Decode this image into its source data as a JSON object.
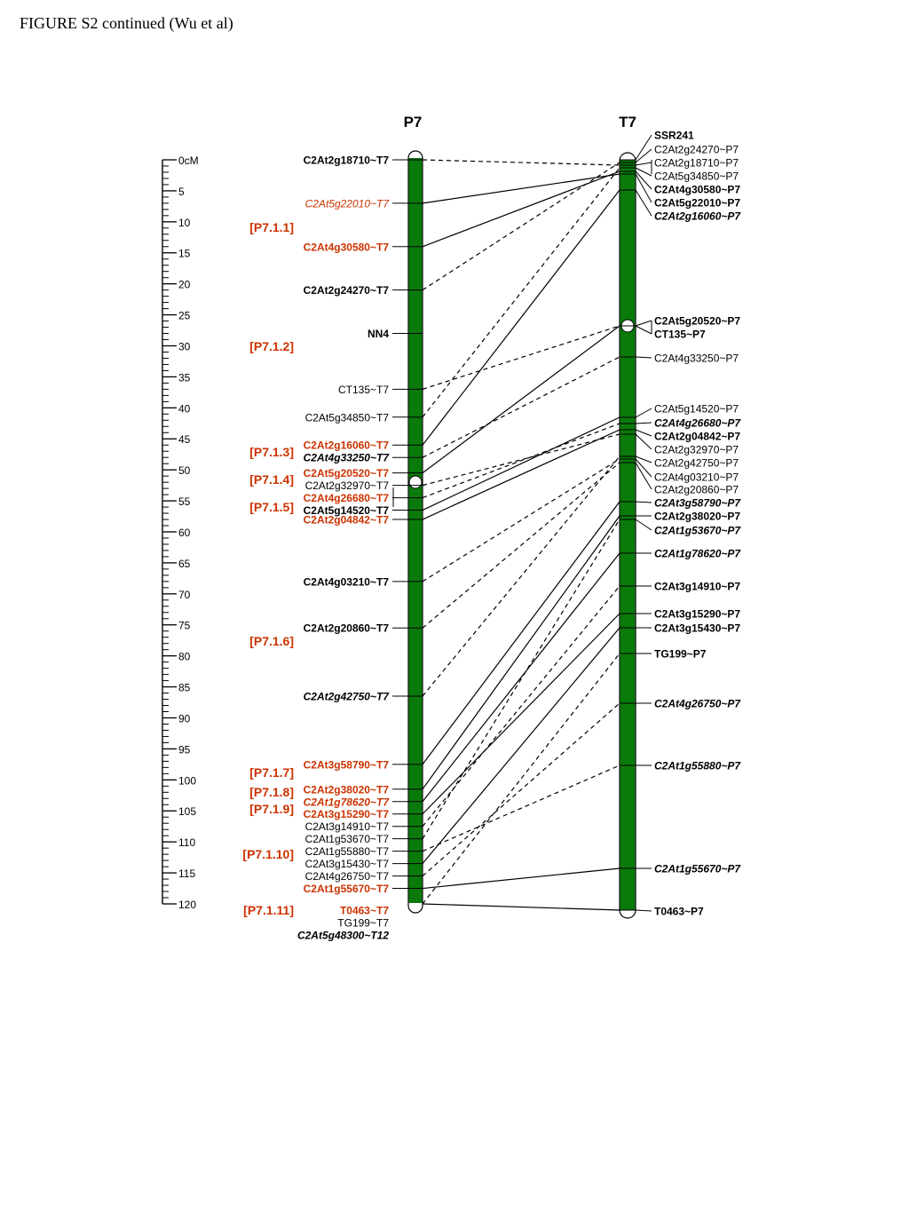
{
  "page_title": "FIGURE S2 continued (Wu et al)",
  "colors": {
    "chromosome": "#0a7a0a",
    "highlight": "#cc3300",
    "text": "#000000",
    "line": "#000000"
  },
  "scale": {
    "unit_label": "0cM",
    "labels": [
      "5",
      "10",
      "15",
      "20",
      "25",
      "30",
      "35",
      "40",
      "45",
      "50",
      "55",
      "60",
      "65",
      "70",
      "75",
      "80",
      "85",
      "90",
      "95",
      "100",
      "105",
      "110",
      "115",
      "120"
    ]
  },
  "maps": {
    "p7": {
      "title": "P7",
      "markers": [
        {
          "name": "C2At2g18710~T7",
          "cm": 0,
          "bold": true,
          "italic": false,
          "highlight": false
        },
        {
          "name": "C2At5g22010~T7",
          "cm": 7,
          "bold": false,
          "italic": true,
          "highlight": true
        },
        {
          "name": "C2At4g30580~T7",
          "cm": 14,
          "bold": true,
          "italic": false,
          "highlight": true
        },
        {
          "name": "C2At2g24270~T7",
          "cm": 21,
          "bold": true,
          "italic": false,
          "highlight": false
        },
        {
          "name": "NN4",
          "cm": 28,
          "bold": true,
          "italic": false,
          "highlight": false
        },
        {
          "name": "CT135~T7",
          "cm": 37,
          "bold": false,
          "italic": false,
          "highlight": false
        },
        {
          "name": "C2At5g34850~T7",
          "cm": 41.5,
          "bold": false,
          "italic": false,
          "highlight": false
        },
        {
          "name": "C2At2g16060~T7",
          "cm": 46,
          "bold": true,
          "italic": false,
          "highlight": true
        },
        {
          "name": "C2At4g33250~T7",
          "cm": 48,
          "bold": true,
          "italic": true,
          "highlight": false
        },
        {
          "name": "C2At5g20520~T7",
          "cm": 50.5,
          "bold": true,
          "italic": false,
          "highlight": true
        },
        {
          "name": "C2At2g32970~T7",
          "cm": 52.5,
          "bold": false,
          "italic": false,
          "highlight": false
        },
        {
          "name": "C2At4g26680~T7",
          "cm": 54.5,
          "bold": true,
          "italic": false,
          "highlight": true
        },
        {
          "name": "C2At5g14520~T7",
          "cm": 56.5,
          "bold": true,
          "italic": false,
          "highlight": false
        },
        {
          "name": "C2At2g04842~T7",
          "cm": 58,
          "bold": true,
          "italic": false,
          "highlight": true
        },
        {
          "name": "C2At4g03210~T7",
          "cm": 68,
          "bold": true,
          "italic": false,
          "highlight": false
        },
        {
          "name": "C2At2g20860~T7",
          "cm": 75.5,
          "bold": true,
          "italic": false,
          "highlight": false
        },
        {
          "name": "C2At2g42750~T7",
          "cm": 86.5,
          "bold": true,
          "italic": true,
          "highlight": false
        },
        {
          "name": "C2At3g58790~T7",
          "cm": 97.5,
          "bold": true,
          "italic": false,
          "highlight": true
        },
        {
          "name": "C2At2g38020~T7",
          "cm": 101.5,
          "bold": true,
          "italic": false,
          "highlight": true
        },
        {
          "name": "C2At1g78620~T7",
          "cm": 103.5,
          "bold": true,
          "italic": true,
          "highlight": true
        },
        {
          "name": "C2At3g15290~T7",
          "cm": 105.5,
          "bold": true,
          "italic": false,
          "highlight": true
        },
        {
          "name": "C2At3g14910~T7",
          "cm": 107.5,
          "bold": false,
          "italic": false,
          "highlight": false
        },
        {
          "name": "C2At1g53670~T7",
          "cm": 109.5,
          "bold": false,
          "italic": false,
          "highlight": false
        },
        {
          "name": "C2At1g55880~T7",
          "cm": 111.5,
          "bold": false,
          "italic": false,
          "highlight": false
        },
        {
          "name": "C2At3g15430~T7",
          "cm": 113.5,
          "bold": false,
          "italic": false,
          "highlight": false
        },
        {
          "name": "C2At4g26750~T7",
          "cm": 115.5,
          "bold": false,
          "italic": false,
          "highlight": false
        },
        {
          "name": "C2At1g55670~T7",
          "cm": 117.5,
          "bold": true,
          "italic": false,
          "highlight": true
        },
        {
          "name": "T0463~T7",
          "cm": 121,
          "bold": true,
          "italic": false,
          "highlight": true
        },
        {
          "name": "TG199~T7",
          "cm": 123,
          "bold": false,
          "italic": false,
          "highlight": false
        },
        {
          "name": "C2At5g48300~T12",
          "cm": 125,
          "bold": true,
          "italic": true,
          "highlight": false
        }
      ]
    },
    "t7": {
      "title": "T7",
      "markers": [
        {
          "name": "SSR241",
          "bold": true,
          "italic": false
        },
        {
          "name": "C2At2g24270~P7",
          "bold": false,
          "italic": false
        },
        {
          "name": "C2At2g18710~P7",
          "bold": false,
          "italic": false
        },
        {
          "name": "C2At5g34850~P7",
          "bold": false,
          "italic": false
        },
        {
          "name": "C2At4g30580~P7",
          "bold": true,
          "italic": false
        },
        {
          "name": "C2At5g22010~P7",
          "bold": true,
          "italic": false
        },
        {
          "name": "C2At2g16060~P7",
          "bold": true,
          "italic": true
        },
        {
          "name": "C2At5g20520~P7",
          "bold": true,
          "italic": false
        },
        {
          "name": "CT135~P7",
          "bold": true,
          "italic": false
        },
        {
          "name": "C2At4g33250~P7",
          "bold": false,
          "italic": false
        },
        {
          "name": "C2At5g14520~P7",
          "bold": false,
          "italic": false
        },
        {
          "name": "C2At4g26680~P7",
          "bold": true,
          "italic": true
        },
        {
          "name": "C2At2g04842~P7",
          "bold": true,
          "italic": false
        },
        {
          "name": "C2At2g32970~P7",
          "bold": false,
          "italic": false
        },
        {
          "name": "C2At2g42750~P7",
          "bold": false,
          "italic": false
        },
        {
          "name": "C2At4g03210~P7",
          "bold": false,
          "italic": false
        },
        {
          "name": "C2At2g20860~P7",
          "bold": false,
          "italic": false
        },
        {
          "name": "C2At3g58790~P7",
          "bold": true,
          "italic": true
        },
        {
          "name": "C2At2g38020~P7",
          "bold": true,
          "italic": false
        },
        {
          "name": "C2At1g53670~P7",
          "bold": true,
          "italic": true
        },
        {
          "name": "C2At1g78620~P7",
          "bold": true,
          "italic": true
        },
        {
          "name": "C2At3g14910~P7",
          "bold": true,
          "italic": false
        },
        {
          "name": "C2At3g15290~P7",
          "bold": true,
          "italic": false
        },
        {
          "name": "C2At3g15430~P7",
          "bold": true,
          "italic": false
        },
        {
          "name": "TG199~P7",
          "bold": true,
          "italic": false
        },
        {
          "name": "C2At4g26750~P7",
          "bold": true,
          "italic": true
        },
        {
          "name": "C2At1g55880~P7",
          "bold": true,
          "italic": true
        },
        {
          "name": "C2At1g55670~P7",
          "bold": true,
          "italic": true
        },
        {
          "name": "T0463~P7",
          "bold": true,
          "italic": false
        }
      ]
    }
  },
  "regions": [
    {
      "label": "[P7.1.1]"
    },
    {
      "label": "[P7.1.2]"
    },
    {
      "label": "[P7.1.3]"
    },
    {
      "label": "[P7.1.4]"
    },
    {
      "label": "[P7.1.5]"
    },
    {
      "label": "[P7.1.6]"
    },
    {
      "label": "[P7.1.7]"
    },
    {
      "label": "[P7.1.8]"
    },
    {
      "label": "[P7.1.9]"
    },
    {
      "label": "[P7.1.10]"
    },
    {
      "label": "[P7.1.11]"
    }
  ],
  "links": [
    {
      "from": "C2At2g18710~T7",
      "to": "C2At2g18710~P7",
      "dashed": true
    },
    {
      "from": "C2At5g22010~T7",
      "to": "C2At5g22010~P7",
      "dashed": false
    },
    {
      "from": "C2At4g30580~T7",
      "to": "C2At4g30580~P7",
      "dashed": false
    },
    {
      "from": "C2At2g24270~T7",
      "to": "C2At2g24270~P7",
      "dashed": true
    },
    {
      "from": "CT135~T7",
      "to": "CT135~P7",
      "dashed": true
    },
    {
      "from": "C2At5g34850~T7",
      "to": "C2At5g34850~P7",
      "dashed": true
    },
    {
      "from": "C2At2g16060~T7",
      "to": "C2At2g16060~P7",
      "dashed": false
    },
    {
      "from": "C2At4g33250~T7",
      "to": "C2At4g33250~P7",
      "dashed": true
    },
    {
      "from": "C2At5g20520~T7",
      "to": "C2At5g20520~P7",
      "dashed": false
    },
    {
      "from": "C2At2g32970~T7",
      "to": "C2At2g32970~P7",
      "dashed": true
    },
    {
      "from": "C2At4g26680~T7",
      "to": "C2At4g26680~P7",
      "dashed": true
    },
    {
      "from": "C2At5g14520~T7",
      "to": "C2At5g14520~P7",
      "dashed": false
    },
    {
      "from": "C2At2g04842~T7",
      "to": "C2At2g04842~P7",
      "dashed": false
    },
    {
      "from": "C2At4g03210~T7",
      "to": "C2At4g03210~P7",
      "dashed": true
    },
    {
      "from": "C2At2g20860~T7",
      "to": "C2At2g20860~P7",
      "dashed": true
    },
    {
      "from": "C2At2g42750~T7",
      "to": "C2At2g42750~P7",
      "dashed": true
    },
    {
      "from": "C2At3g58790~T7",
      "to": "C2At3g58790~P7",
      "dashed": false
    },
    {
      "from": "C2At2g38020~T7",
      "to": "C2At2g38020~P7",
      "dashed": false
    },
    {
      "from": "C2At1g78620~T7",
      "to": "C2At1g78620~P7",
      "dashed": false
    },
    {
      "from": "C2At3g15290~T7",
      "to": "C2At3g15290~P7",
      "dashed": false
    },
    {
      "from": "C2At3g14910~T7",
      "to": "C2At3g14910~P7",
      "dashed": true
    },
    {
      "from": "C2At1g53670~T7",
      "to": "C2At1g53670~P7",
      "dashed": true
    },
    {
      "from": "C2At1g55880~T7",
      "to": "C2At1g55880~P7",
      "dashed": true
    },
    {
      "from": "C2At3g15430~T7",
      "to": "C2At3g15430~P7",
      "dashed": false
    },
    {
      "from": "C2At4g26750~T7",
      "to": "C2At4g26750~P7",
      "dashed": true
    },
    {
      "from": "C2At1g55670~T7",
      "to": "C2At1g55670~P7",
      "dashed": false
    },
    {
      "from": "T0463~T7",
      "to": "T0463~P7",
      "dashed": false
    },
    {
      "from": "TG199~T7",
      "to": "TG199~P7",
      "dashed": true
    }
  ]
}
